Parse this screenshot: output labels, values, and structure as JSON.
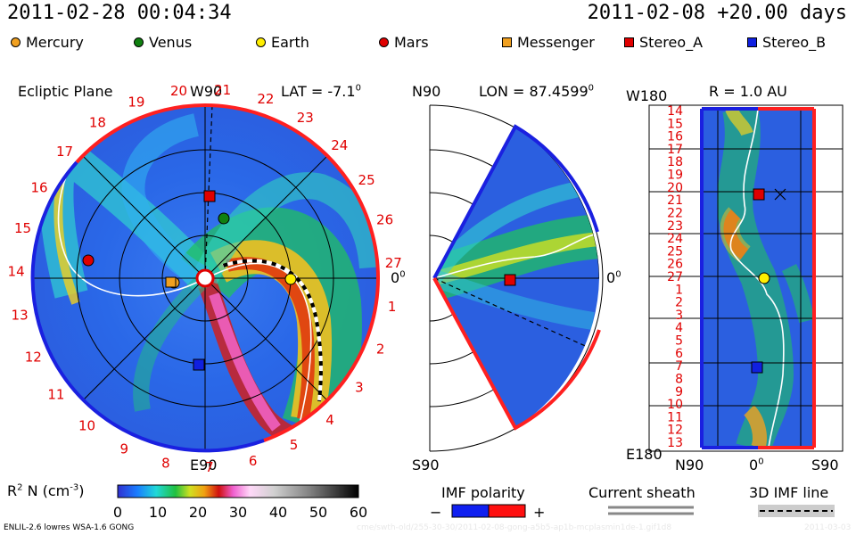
{
  "header": {
    "current_time": "2011-02-28 00:04:34",
    "run_info": "2011-02-08 +20.00 days"
  },
  "legend": [
    {
      "label": "Mercury",
      "color": "#f0a020",
      "shape": "circle"
    },
    {
      "label": "Venus",
      "color": "#108010",
      "shape": "circle"
    },
    {
      "label": "Earth",
      "color": "#ffee00",
      "shape": "circle"
    },
    {
      "label": "Mars",
      "color": "#e00000",
      "shape": "circle"
    },
    {
      "label": "Messenger",
      "color": "#f0a020",
      "shape": "square"
    },
    {
      "label": "Stereo_A",
      "color": "#e00000",
      "shape": "square"
    },
    {
      "label": "Stereo_B",
      "color": "#1020e0",
      "shape": "square"
    }
  ],
  "panels": {
    "ecliptic": {
      "title": "Ecliptic Plane",
      "top_label": "W90",
      "lat_label": "LAT = -7.1",
      "lat_sup": "0",
      "bottom_label": "E90",
      "right_label": "0",
      "right_sup": "0",
      "rotation_labels": [
        "20",
        "21",
        "22",
        "23",
        "24",
        "25",
        "26",
        "27",
        "1",
        "2",
        "3",
        "4",
        "5",
        "6",
        "7",
        "8",
        "9",
        "10",
        "11",
        "12",
        "13",
        "14",
        "15",
        "16",
        "17",
        "18",
        "19"
      ]
    },
    "meridional": {
      "top_label": "N90",
      "lon_label": "LON = 87.4599",
      "lon_sup": "0",
      "right_label": "0",
      "right_sup": "0",
      "bottom_label": "S90"
    },
    "radius": {
      "top_left_label": "W180",
      "r_label": "R = 1.0 AU",
      "bottom_left_label": "E180",
      "x_left": "N90",
      "x_mid": "0",
      "x_mid_sup": "0",
      "x_right": "S90",
      "y_ticks": [
        "14",
        "15",
        "16",
        "17",
        "18",
        "19",
        "20",
        "21",
        "22",
        "23",
        "24",
        "25",
        "26",
        "27",
        "1",
        "2",
        "3",
        "4",
        "5",
        "6",
        "7",
        "8",
        "9",
        "10",
        "11",
        "12",
        "13"
      ]
    }
  },
  "colorbar": {
    "label": "R",
    "label_sup": "2",
    "label_rest": " N (cm",
    "label_unit_sup": "-3",
    "label_close": ")",
    "ticks": [
      "0",
      "10",
      "20",
      "30",
      "40",
      "50",
      "60"
    ]
  },
  "imf": {
    "title": "IMF polarity",
    "minus": "−",
    "plus": "+"
  },
  "current_sheath": {
    "title": "Current sheath"
  },
  "imf_line": {
    "title": "3D IMF line"
  },
  "footer": {
    "model": "ENLIL-2.6 lowres WSA-1.6 GONG",
    "watermark": "cme/swth-old/255-30-30/2011-02-08-gong-a5b5-ap1b-mcplasmin1de-1.gif1d8",
    "date": "2011-03-03"
  }
}
